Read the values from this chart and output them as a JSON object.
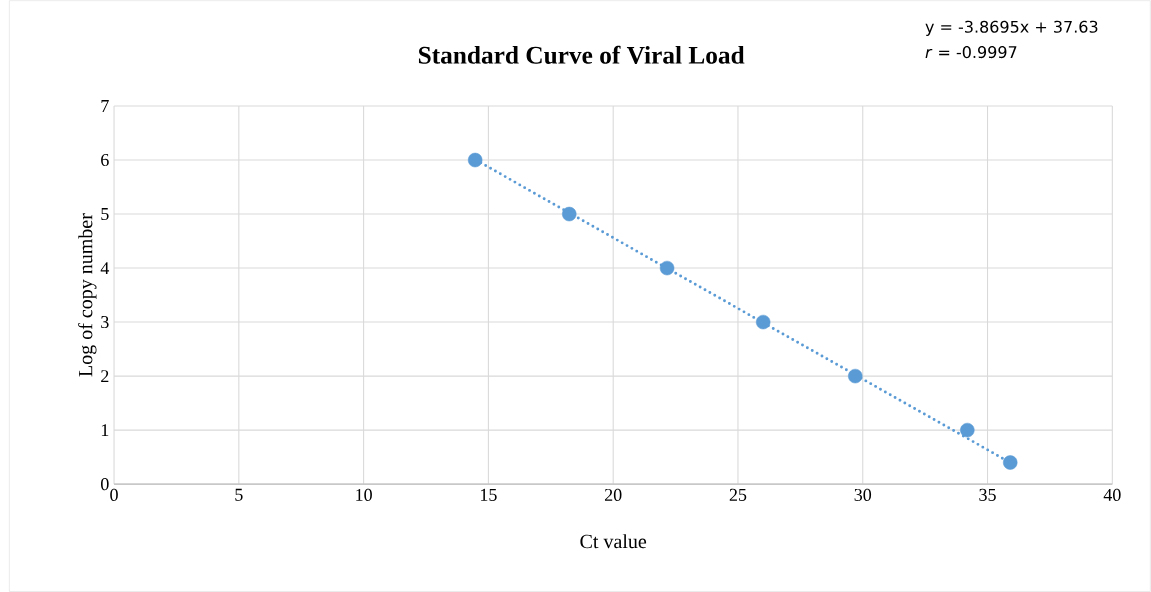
{
  "chart_data": {
    "type": "scatter",
    "title": "Standard Curve of Viral Load",
    "xlabel": "Ct value",
    "ylabel": "Log of copy number",
    "annotations": [
      "y = -3.8695x + 37.63",
      "*r* = -0.9997"
    ],
    "xlim": [
      0,
      40
    ],
    "xticks": [
      0,
      5,
      10,
      15,
      20,
      25,
      30,
      35,
      40
    ],
    "ylim": [
      0,
      7
    ],
    "yticks": [
      0,
      1,
      2,
      3,
      4,
      5,
      6,
      7
    ],
    "grid": true,
    "series": [
      {
        "type": "scatter",
        "color": "#5b9bd5",
        "marker": "circle",
        "x": [
          14.47,
          18.24,
          22.16,
          26.01,
          29.7,
          34.19,
          35.91
        ],
        "values": [
          6,
          5,
          4,
          3,
          2,
          1,
          0.4
        ]
      },
      {
        "type": "line",
        "color": "#5b9bd5",
        "line_style": "dotted",
        "x": [
          14.5,
          35.9
        ],
        "values": [
          6,
          0.4
        ]
      }
    ]
  }
}
